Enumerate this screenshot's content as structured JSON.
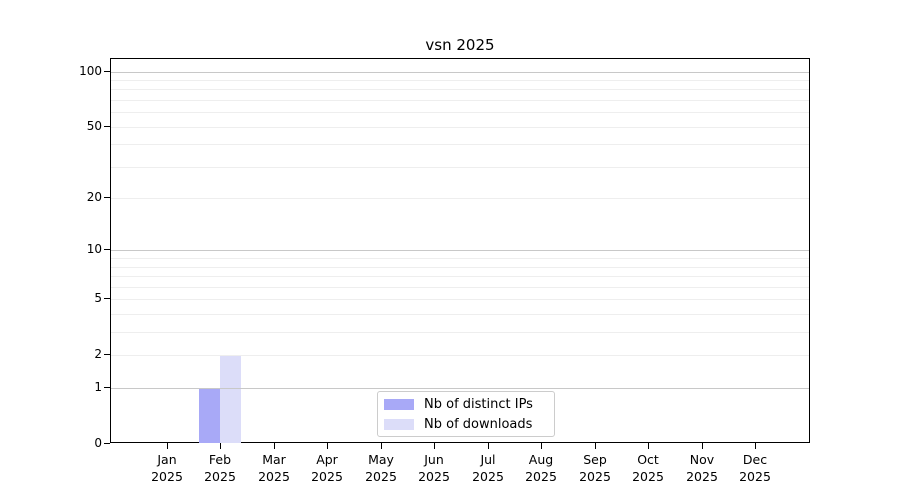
{
  "chart_data": {
    "type": "bar",
    "title": "vsn 2025",
    "scale": "log1p",
    "grid": "horizontal-only",
    "legend_position": "lower center",
    "x": [
      "Jan",
      "Feb",
      "Mar",
      "Apr",
      "May",
      "Jun",
      "Jul",
      "Aug",
      "Sep",
      "Oct",
      "Nov",
      "Dec"
    ],
    "x_year": "2025",
    "series": [
      {
        "name": "Nb of distinct IPs",
        "color": "#a8a9f7",
        "values": [
          0,
          1,
          0,
          0,
          0,
          0,
          0,
          0,
          0,
          0,
          0,
          0
        ]
      },
      {
        "name": "Nb of downloads",
        "color": "#dcddf9",
        "values": [
          0,
          2,
          0,
          0,
          0,
          0,
          0,
          0,
          0,
          0,
          0,
          0
        ]
      }
    ],
    "y_ticks": [
      0,
      1,
      2,
      5,
      10,
      20,
      50,
      100
    ],
    "y_gridlines_strong": [
      1,
      10,
      100
    ],
    "y_gridlines_faint": [
      2,
      3,
      4,
      5,
      6,
      7,
      8,
      9,
      20,
      30,
      40,
      50,
      60,
      70,
      80,
      90
    ],
    "ylim": [
      0,
      117
    ],
    "colors": {
      "grid_strong": "#c8c8c8",
      "grid_faint": "#eeeeee",
      "axis": "#000000",
      "legend_border": "#cccccc",
      "text": "#000000"
    }
  }
}
